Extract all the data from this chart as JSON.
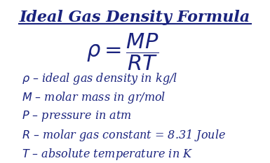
{
  "title": "Ideal Gas Density Formula",
  "title_color": "#1a237e",
  "bg_color": "#ffffff",
  "text_color": "#1a237e",
  "formula_main": "$\\rho = \\dfrac{MP}{RT}$",
  "definitions": [
    "$\\rho$ – ideal gas density in kg/l",
    "$M$ – molar mass in gr/mol",
    "$P$ – pressure in atm",
    "$R$ – molar gas constant = 8.31 Joule",
    "$T$ – absolute temperature in K"
  ],
  "title_fontsize": 16,
  "formula_fontsize": 22,
  "def_fontsize": 11.5,
  "fig_width": 3.85,
  "fig_height": 2.33
}
